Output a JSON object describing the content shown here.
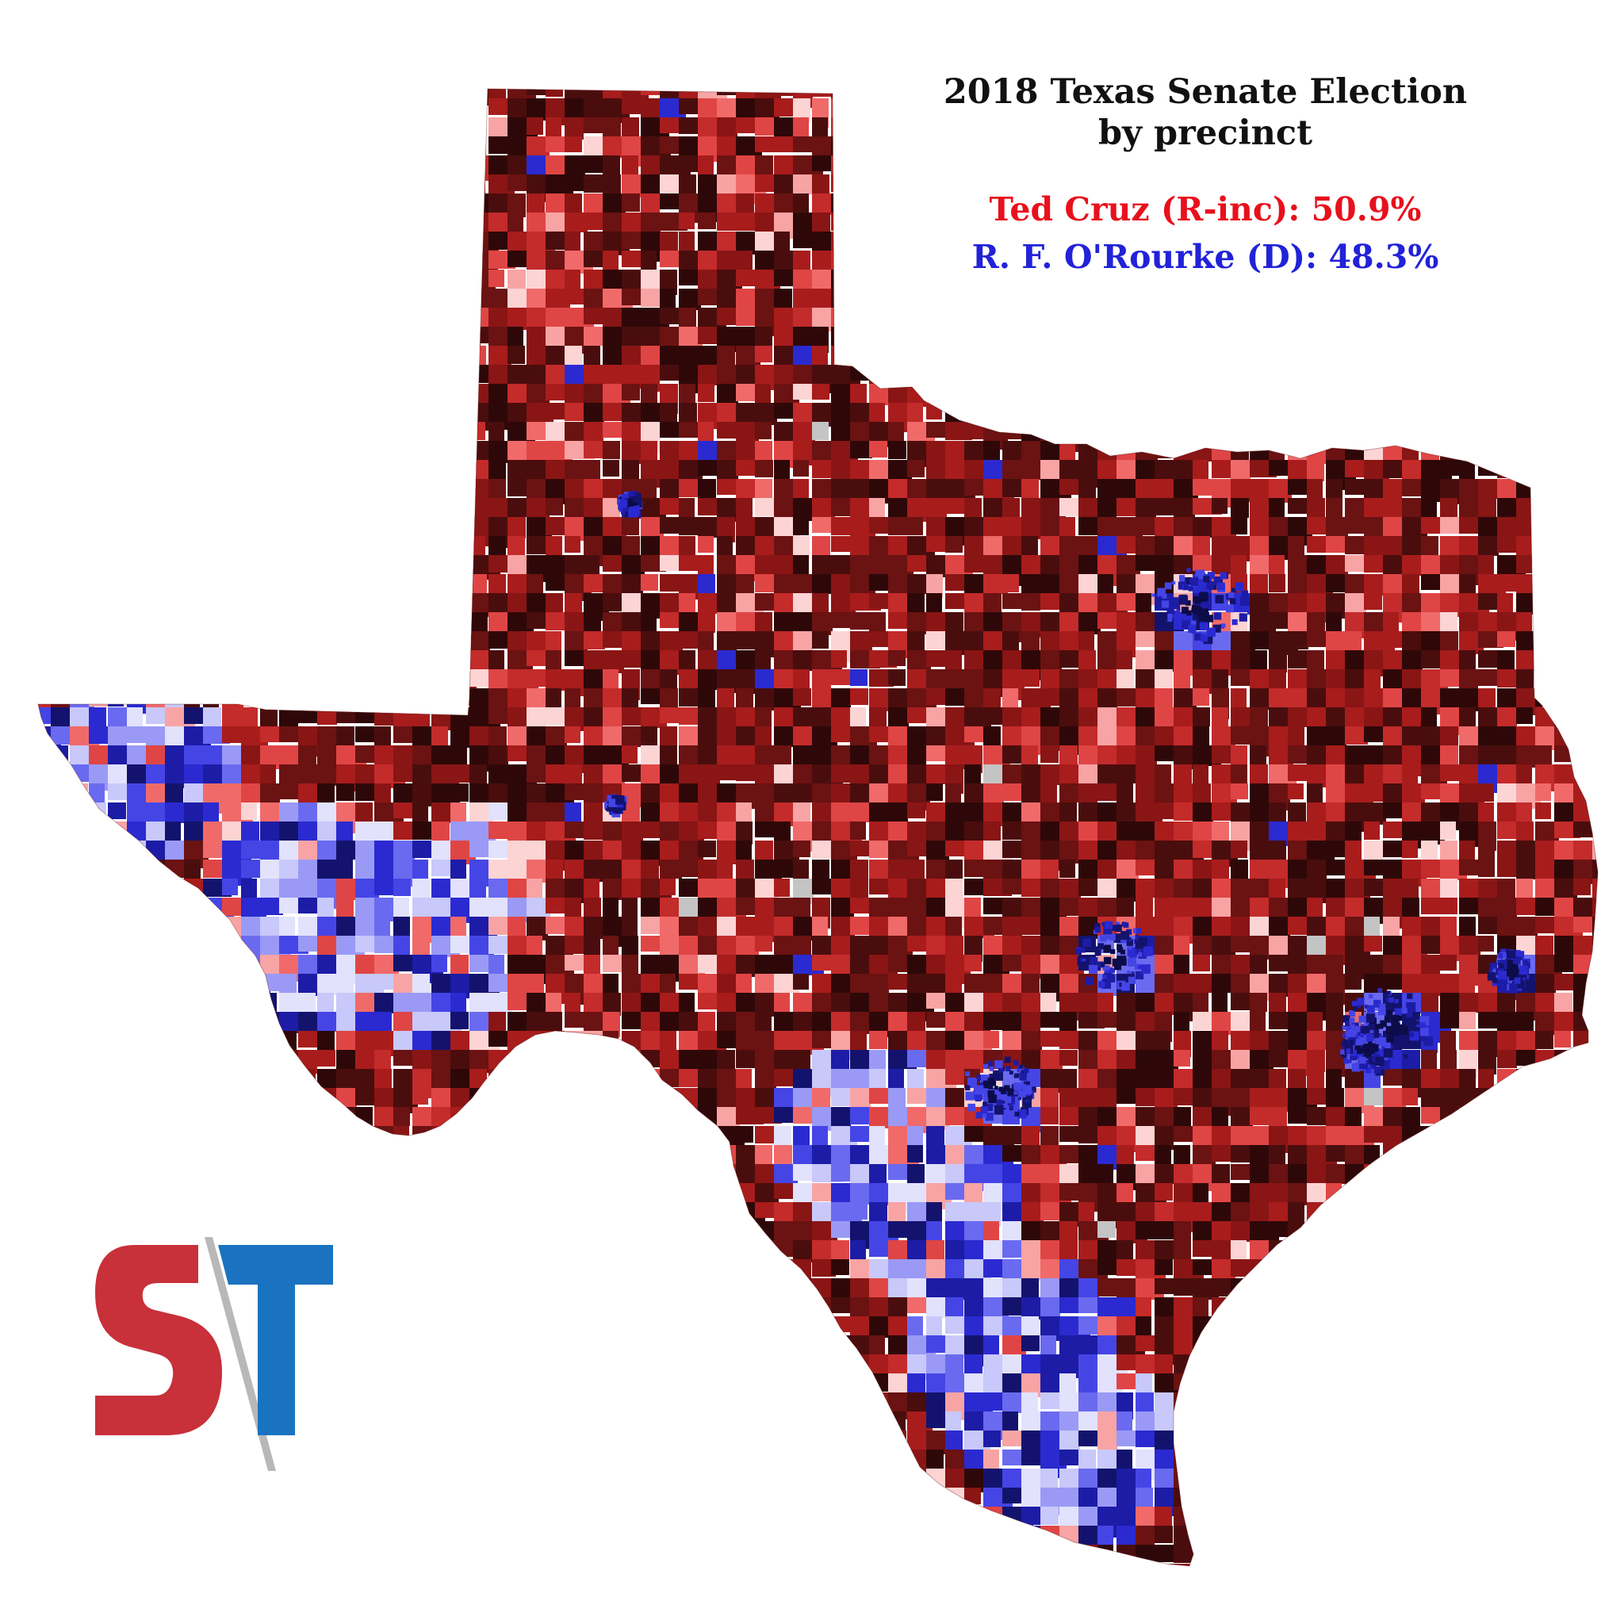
{
  "title": {
    "line1": "2018 Texas Senate Election",
    "line2": "by precinct"
  },
  "candidates": [
    {
      "label": "Ted Cruz (R-inc): 50.9%",
      "name": "Ted Cruz",
      "party": "R-inc",
      "share_pct": 50.9,
      "color": "#e8101c"
    },
    {
      "label": "R. F. O'Rourke (D): 48.3%",
      "name": "R. F. O'Rourke",
      "party": "D",
      "share_pct": 48.3,
      "color": "#2222d8"
    }
  ],
  "logo": {
    "text": "ST",
    "s_color": "#c8303a",
    "t_color": "#1a73c0"
  },
  "palette": {
    "rep": [
      "#2e0808",
      "#4a0d0d",
      "#6b1212",
      "#8a1515",
      "#a81c1c",
      "#c42b2b",
      "#e04545",
      "#f06a6a",
      "#f8a4a4",
      "#fcd4d4"
    ],
    "dem": [
      "#13136e",
      "#1c1ca6",
      "#2a2ad0",
      "#4545e6",
      "#6a6af0",
      "#9a9af6",
      "#c8c8fa",
      "#e2e2fc"
    ],
    "tie": "#c4c4c4"
  }
}
